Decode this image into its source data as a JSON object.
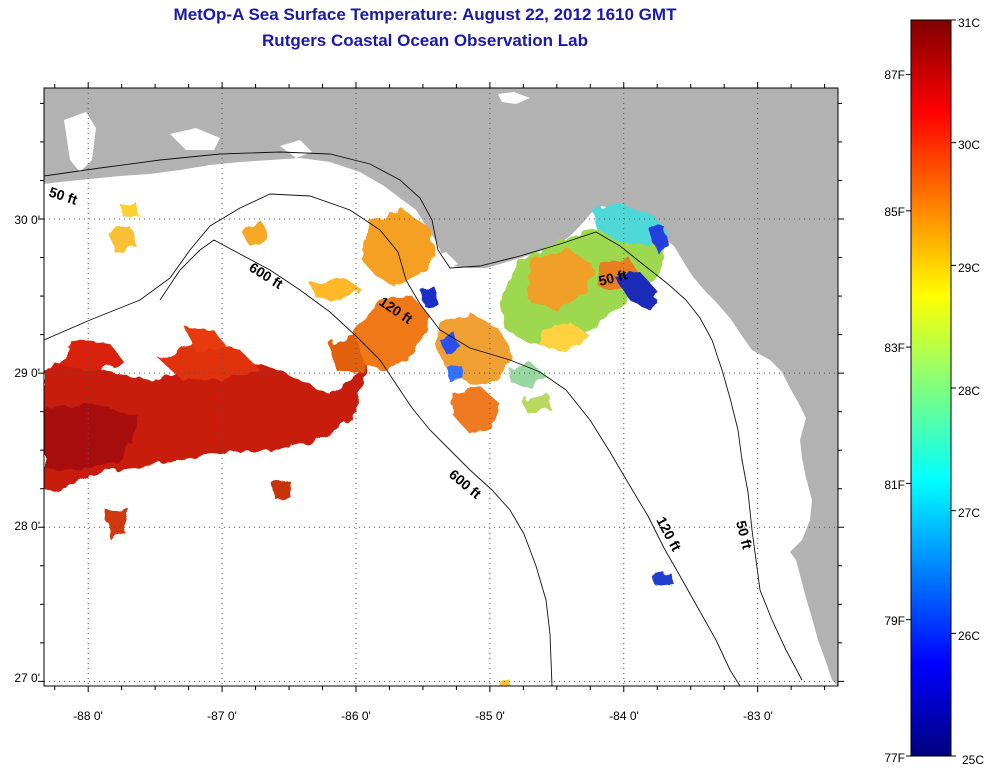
{
  "header": {
    "title": "MetOp-A Sea Surface Temperature:  August 22, 2012 1610 GMT",
    "subtitle": "Rutgers Coastal Ocean Observation Lab"
  },
  "map": {
    "lat_labels": [
      "30 0'",
      "29 0'",
      "28 0'",
      "27 0'"
    ],
    "lon_labels": [
      "-88 0'",
      "-87 0'",
      "-86 0'",
      "-85 0'",
      "-84 0'",
      "-83 0'"
    ],
    "lat_range": [
      26.97,
      30.85
    ],
    "lon_range": [
      -88.33,
      -82.4
    ],
    "land_color": "#b2b2b2",
    "contours": [
      {
        "label": "50 ft",
        "depth_ft": 50
      },
      {
        "label": "120 ft",
        "depth_ft": 120
      },
      {
        "label": "600 ft",
        "depth_ft": 600
      }
    ],
    "contour_labels": [
      {
        "text": "50 ft"
      },
      {
        "text": "600 ft"
      },
      {
        "text": "120 ft"
      },
      {
        "text": "50 ft"
      },
      {
        "text": "600 ft"
      },
      {
        "text": "120 ft"
      },
      {
        "text": "50 ft"
      }
    ]
  },
  "colorbar": {
    "celsius_labels": [
      "31C",
      "30C",
      "29C",
      "28C",
      "27C",
      "26C",
      "25C"
    ],
    "fahrenheit_labels": [
      "87F",
      "85F",
      "83F",
      "81F",
      "79F",
      "77F"
    ],
    "range_c": [
      25,
      31
    ],
    "colors": [
      "#00007f",
      "#0000ff",
      "#007fff",
      "#00ffff",
      "#7fff7f",
      "#ffff00",
      "#ff7f00",
      "#ff0000",
      "#7f0000"
    ]
  }
}
